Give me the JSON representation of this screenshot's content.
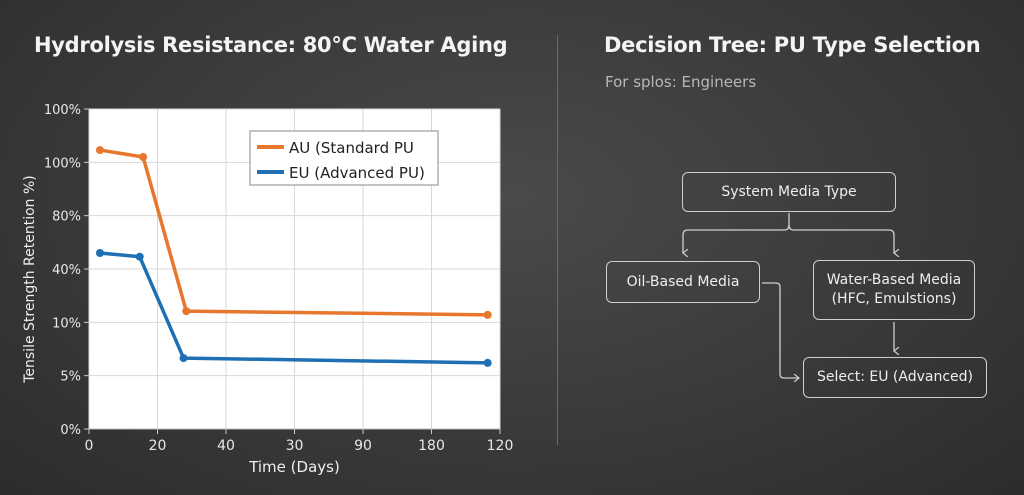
{
  "left_title": "Hydrolysis Resistance: 80°C Water Aging",
  "right_title": "Decision Tree: PU Type Selection",
  "right_subtitle": "For splos: Engineers",
  "chart_data": {
    "type": "line",
    "title": "Hydrolysis Resistance: 80°C Water Aging",
    "xlabel": "Time (Days)",
    "ylabel": "Tensile Strength Retention %)",
    "x_ticks": [
      "0",
      "20",
      "40",
      "30",
      "90",
      "180",
      "120"
    ],
    "y_ticks": [
      "0%",
      "5%",
      "10%",
      "40%",
      "80%",
      "100%",
      "100%"
    ],
    "note": "values expressed in tick-index units (0 = first tick) because tick labels are non-uniform",
    "xlim": [
      0,
      6
    ],
    "ylim": [
      0,
      6
    ],
    "grid": true,
    "legend_position": "top-right",
    "series": [
      {
        "name": "AU (Standard PU",
        "color": "#e8772e",
        "x": [
          0.16,
          0.79,
          1.42,
          5.82
        ],
        "y": [
          5.23,
          5.1,
          2.21,
          2.14
        ]
      },
      {
        "name": "EU (Advanced PU)",
        "color": "#1f6fb4",
        "x": [
          0.16,
          0.74,
          1.38,
          5.82
        ],
        "y": [
          3.3,
          3.23,
          1.33,
          1.24
        ]
      }
    ]
  },
  "tree": {
    "root": "System Media Type",
    "oil": "Oil-Based Media",
    "water_line1": "Water-Based Media",
    "water_line2": "(HFC, Emulstions)",
    "result": "Select: EU (Advanced)"
  }
}
